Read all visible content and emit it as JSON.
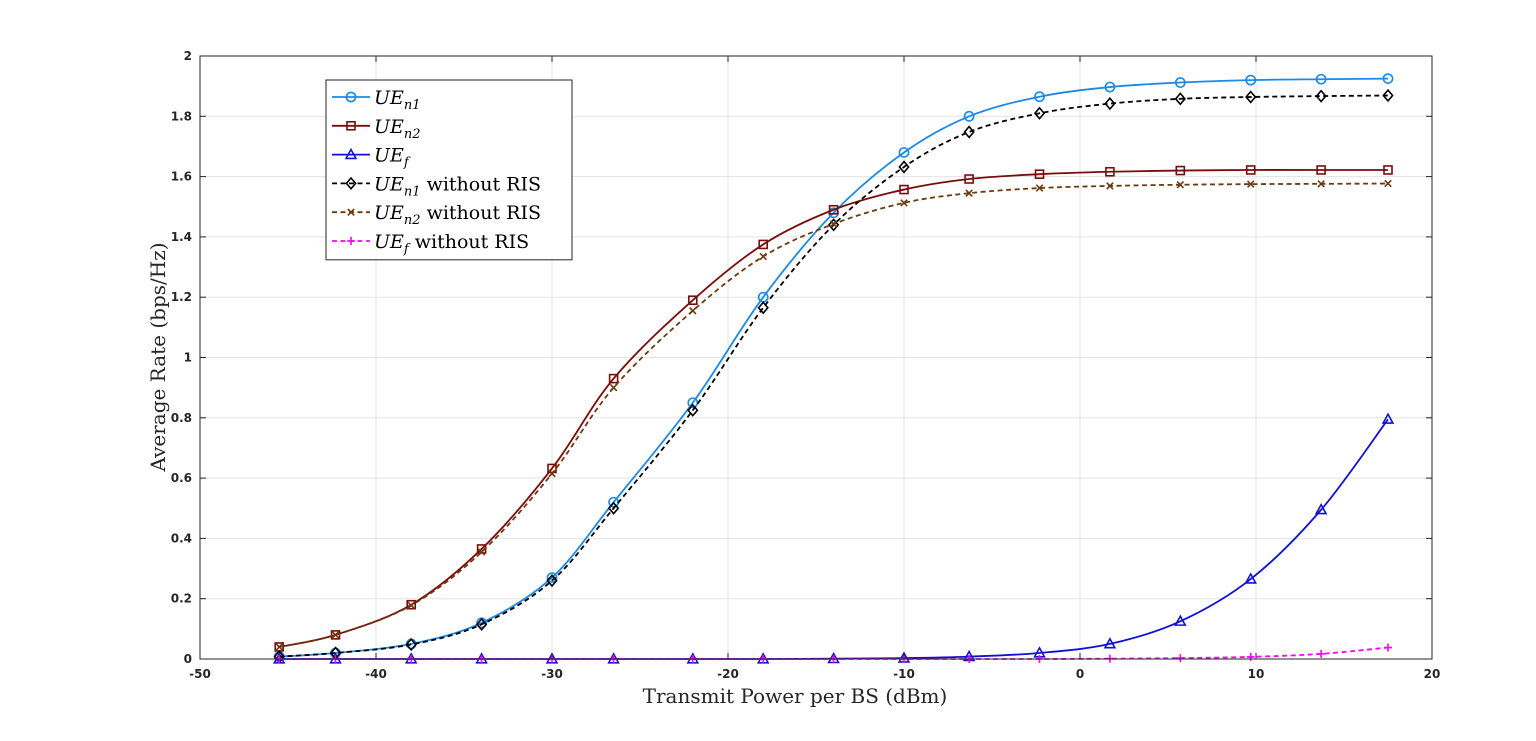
{
  "chart_data": {
    "type": "line",
    "xlabel": "Transmit Power per BS (dBm)",
    "ylabel": "Average Rate (bps/Hz)",
    "xlim": [
      -50,
      20
    ],
    "ylim": [
      0,
      2
    ],
    "xticks": [
      "-50",
      "-40",
      "-30",
      "-20",
      "-10",
      "0",
      "10",
      "20"
    ],
    "yticks": [
      "0",
      "0.2",
      "0.4",
      "0.6",
      "0.8",
      "1",
      "1.2",
      "1.4",
      "1.6",
      "1.8",
      "2"
    ],
    "grid": true,
    "legend_position": "top-left",
    "series": [
      {
        "name": "UE_{n1}",
        "legend_main": "UE",
        "legend_sub": "n1",
        "legend_suffix": "",
        "color": "#1a8ae6",
        "line": "solid",
        "marker": "circle",
        "x": [
          -45.5,
          -42.3,
          -38,
          -34,
          -30,
          -26.5,
          -22,
          -18,
          -14,
          -10,
          -6.3,
          -2.3,
          1.7,
          5.7,
          9.7,
          13.7,
          17.5
        ],
        "y": [
          0.008,
          0.02,
          0.05,
          0.12,
          0.27,
          0.52,
          0.85,
          1.2,
          1.48,
          1.68,
          1.8,
          1.865,
          1.897,
          1.912,
          1.92,
          1.923,
          1.925
        ]
      },
      {
        "name": "UE_{n2}",
        "legend_main": "UE",
        "legend_sub": "n2",
        "legend_suffix": "",
        "color": "#7a0c0c",
        "line": "solid",
        "marker": "square",
        "x": [
          -45.5,
          -42.3,
          -38,
          -34,
          -30,
          -26.5,
          -22,
          -18,
          -14,
          -10,
          -6.3,
          -2.3,
          1.7,
          5.7,
          9.7,
          13.7,
          17.5
        ],
        "y": [
          0.04,
          0.08,
          0.18,
          0.365,
          0.632,
          0.93,
          1.19,
          1.375,
          1.49,
          1.557,
          1.592,
          1.608,
          1.616,
          1.62,
          1.622,
          1.622,
          1.622
        ]
      },
      {
        "name": "UE_f",
        "legend_main": "UE",
        "legend_sub": "f",
        "legend_suffix": "",
        "color": "#1010d8",
        "line": "solid",
        "marker": "triangle",
        "x": [
          -45.5,
          -42.3,
          -38,
          -34,
          -30,
          -26.5,
          -22,
          -18,
          -14,
          -10,
          -6.3,
          -2.3,
          1.7,
          5.7,
          9.7,
          13.7,
          17.5
        ],
        "y": [
          0,
          0,
          0,
          0,
          0,
          0,
          0,
          0,
          0.001,
          0.003,
          0.008,
          0.02,
          0.05,
          0.125,
          0.265,
          0.495,
          0.795
        ]
      },
      {
        "name": "UE_{n1} without RIS",
        "legend_main": "UE",
        "legend_sub": "n1",
        "legend_suffix": " without RIS",
        "color": "#000000",
        "line": "dashed",
        "marker": "diamond",
        "x": [
          -45.5,
          -42.3,
          -38,
          -34,
          -30,
          -26.5,
          -22,
          -18,
          -14,
          -10,
          -6.3,
          -2.3,
          1.7,
          5.7,
          9.7,
          13.7,
          17.5
        ],
        "y": [
          0.008,
          0.02,
          0.048,
          0.115,
          0.26,
          0.5,
          0.825,
          1.165,
          1.44,
          1.632,
          1.748,
          1.81,
          1.842,
          1.858,
          1.864,
          1.867,
          1.869
        ]
      },
      {
        "name": "UE_{n2} without RIS",
        "legend_main": "UE",
        "legend_sub": "n2",
        "legend_suffix": " without RIS",
        "color": "#6b3a0e",
        "line": "dashed",
        "marker": "x",
        "x": [
          -45.5,
          -42.3,
          -38,
          -34,
          -30,
          -26.5,
          -22,
          -18,
          -14,
          -10,
          -6.3,
          -2.3,
          1.7,
          5.7,
          9.7,
          13.7,
          17.5
        ],
        "y": [
          0.04,
          0.08,
          0.178,
          0.355,
          0.615,
          0.9,
          1.155,
          1.335,
          1.443,
          1.513,
          1.545,
          1.562,
          1.569,
          1.573,
          1.575,
          1.576,
          1.577
        ]
      },
      {
        "name": "UE_f without RIS",
        "legend_main": "UE",
        "legend_sub": "f",
        "legend_suffix": " without RIS",
        "color": "#ff00ff",
        "line": "dashed",
        "marker": "plus",
        "x": [
          -45.5,
          -42.3,
          -38,
          -34,
          -30,
          -26.5,
          -22,
          -18,
          -14,
          -10,
          -6.3,
          -2.3,
          1.7,
          5.7,
          9.7,
          13.7,
          17.5
        ],
        "y": [
          0,
          0,
          0,
          0,
          0,
          0,
          0,
          0,
          0,
          0,
          0,
          0,
          0.001,
          0.003,
          0.007,
          0.017,
          0.038
        ]
      }
    ]
  }
}
